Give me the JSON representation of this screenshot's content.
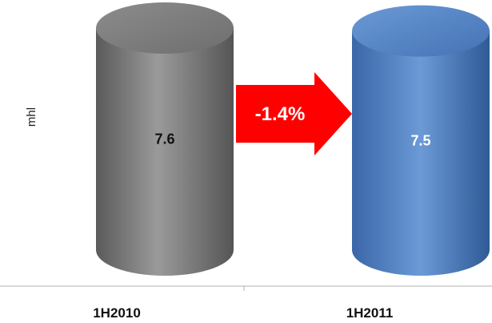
{
  "chart_data": {
    "type": "bar",
    "categories": [
      "1H2010",
      "1H2011"
    ],
    "values": [
      7.6,
      7.5
    ],
    "value_labels": [
      "7.6",
      "7.5"
    ],
    "ylabel": "mhl",
    "title": "",
    "annotation": "-1.4%",
    "bar_colors": [
      "#7a7a7a",
      "#4a7cc0"
    ],
    "label_colors": [
      "#111111",
      "#ffffff"
    ],
    "arrow_color": "#ff0000"
  }
}
